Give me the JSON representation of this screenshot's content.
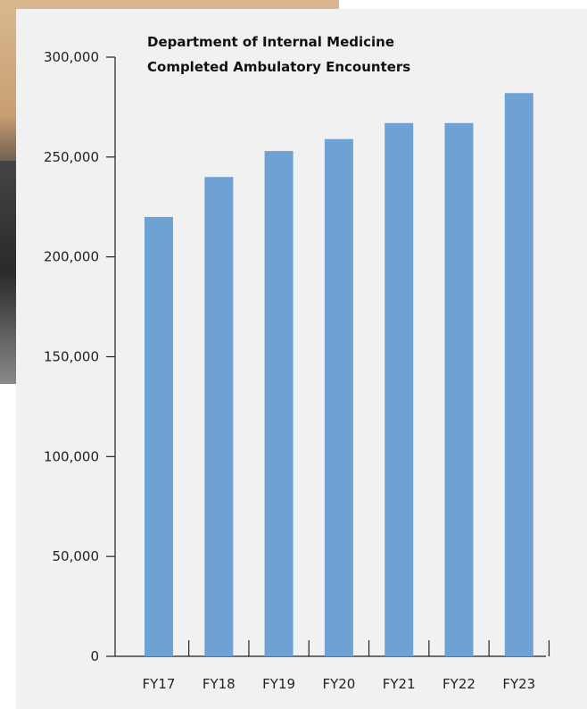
{
  "chart_data": {
    "type": "bar",
    "title": [
      "Department of Internal Medicine",
      "Completed Ambulatory Encounters"
    ],
    "categories": [
      "FY17",
      "FY18",
      "FY19",
      "FY20",
      "FY21",
      "FY22",
      "FY23"
    ],
    "values": [
      220000,
      240000,
      253000,
      259000,
      267000,
      267000,
      282000
    ],
    "ylim": [
      0,
      300000
    ],
    "yticks": [
      0,
      50000,
      100000,
      150000,
      200000,
      250000,
      300000
    ],
    "ytick_labels": [
      "0",
      "50,000",
      "100,000",
      "150,000",
      "200,000",
      "250,000",
      "300,000"
    ],
    "xlabel": "",
    "ylabel": "",
    "grid": false,
    "bar_color": "#6ea2d4"
  }
}
